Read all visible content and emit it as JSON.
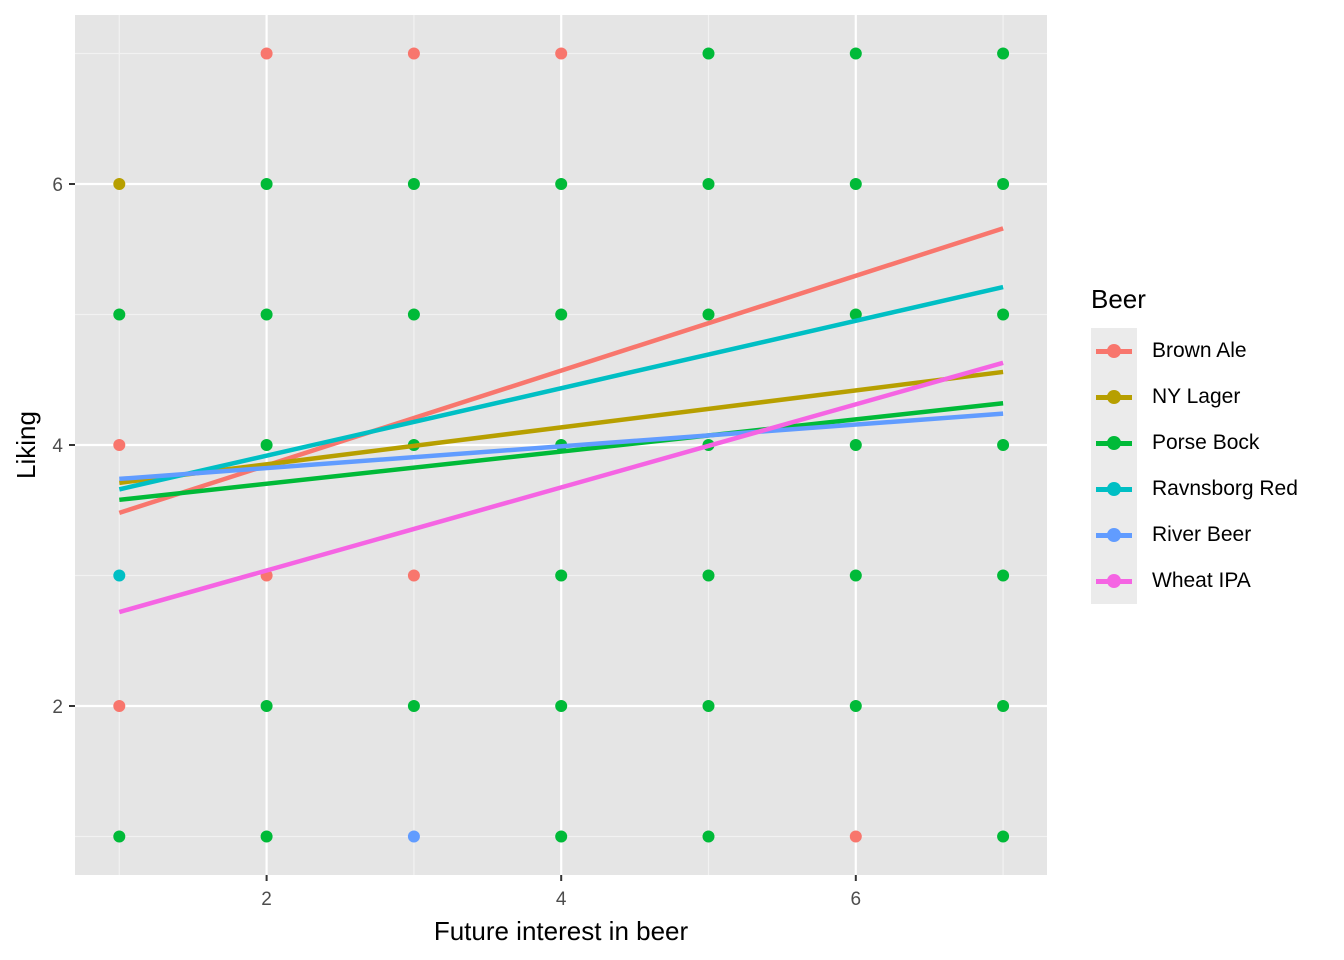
{
  "chart_data": {
    "type": "scatter",
    "title": "",
    "xlabel": "Future interest in beer",
    "ylabel": "Liking",
    "xlim": [
      0.7,
      7.3
    ],
    "ylim": [
      0.7,
      7.3
    ],
    "x_ticks": [
      2,
      4,
      6
    ],
    "y_ticks": [
      2,
      4,
      6
    ],
    "grid": true,
    "legend_title": "Beer",
    "legend_position": "right",
    "series": [
      {
        "name": "Brown Ale",
        "color": "#F8766D",
        "points": [
          [
            1,
            4
          ],
          [
            1,
            2
          ],
          [
            2,
            7
          ],
          [
            2,
            3
          ],
          [
            3,
            7
          ],
          [
            3,
            3
          ],
          [
            4,
            7
          ],
          [
            6,
            1
          ]
        ],
        "fit_line": {
          "x": [
            1,
            7
          ],
          "y": [
            3.48,
            5.66
          ]
        }
      },
      {
        "name": "NY Lager",
        "color": "#B79F00",
        "points": [
          [
            1,
            6
          ]
        ],
        "fit_line": {
          "x": [
            1,
            7
          ],
          "y": [
            3.71,
            4.56
          ]
        }
      },
      {
        "name": "Porse Bock",
        "color": "#00BA38",
        "points": [
          [
            1,
            5
          ],
          [
            1,
            1
          ],
          [
            2,
            6
          ],
          [
            2,
            5
          ],
          [
            2,
            4
          ],
          [
            2,
            2
          ],
          [
            2,
            1
          ],
          [
            3,
            6
          ],
          [
            3,
            5
          ],
          [
            3,
            4
          ],
          [
            3,
            2
          ],
          [
            4,
            6
          ],
          [
            4,
            5
          ],
          [
            4,
            4
          ],
          [
            4,
            3
          ],
          [
            4,
            2
          ],
          [
            4,
            1
          ],
          [
            5,
            7
          ],
          [
            5,
            6
          ],
          [
            5,
            5
          ],
          [
            5,
            4
          ],
          [
            5,
            3
          ],
          [
            5,
            2
          ],
          [
            5,
            1
          ],
          [
            6,
            7
          ],
          [
            6,
            6
          ],
          [
            6,
            5
          ],
          [
            6,
            4
          ],
          [
            6,
            3
          ],
          [
            6,
            2
          ],
          [
            7,
            7
          ],
          [
            7,
            6
          ],
          [
            7,
            5
          ],
          [
            7,
            4
          ],
          [
            7,
            3
          ],
          [
            7,
            2
          ],
          [
            7,
            1
          ]
        ],
        "fit_line": {
          "x": [
            1,
            7
          ],
          "y": [
            3.58,
            4.32
          ]
        }
      },
      {
        "name": "Ravnsborg Red",
        "color": "#00BFC4",
        "points": [
          [
            1,
            3
          ]
        ],
        "fit_line": {
          "x": [
            1,
            7
          ],
          "y": [
            3.66,
            5.21
          ]
        }
      },
      {
        "name": "River Beer",
        "color": "#619CFF",
        "points": [
          [
            3,
            1
          ]
        ],
        "fit_line": {
          "x": [
            1,
            7
          ],
          "y": [
            3.74,
            4.24
          ]
        }
      },
      {
        "name": "Wheat IPA",
        "color": "#F564E3",
        "points": [],
        "fit_line": {
          "x": [
            1,
            7
          ],
          "y": [
            2.72,
            4.63
          ]
        }
      }
    ]
  },
  "legend": {
    "title": "Beer",
    "items": [
      {
        "label": "Brown Ale",
        "color": "#F8766D"
      },
      {
        "label": "NY Lager",
        "color": "#B79F00"
      },
      {
        "label": "Porse Bock",
        "color": "#00BA38"
      },
      {
        "label": "Ravnsborg Red",
        "color": "#00BFC4"
      },
      {
        "label": "River Beer",
        "color": "#619CFF"
      },
      {
        "label": "Wheat IPA",
        "color": "#F564E3"
      }
    ]
  },
  "colors": {
    "panel_background": "#E5E5E5",
    "grid": "#FFFFFF",
    "axis_text": "#4D4D4D"
  }
}
